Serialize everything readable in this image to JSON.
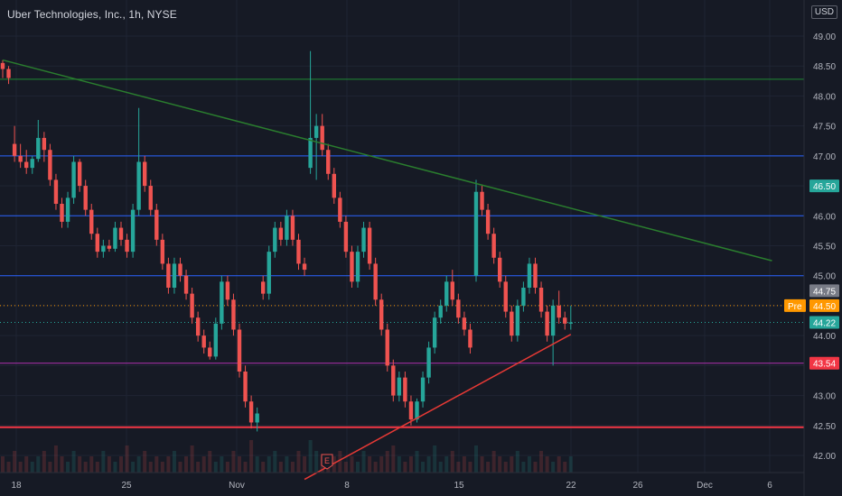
{
  "header": {
    "title": "Uber Technologies, Inc., 1h, NYSE",
    "currency": "USD"
  },
  "colors": {
    "background": "#161a25",
    "up": "#26a69a",
    "down": "#ef5350",
    "grid": "#1f2433",
    "axis_text": "#b2b5be",
    "hline_blue": "#2962ff",
    "hline_green": "#1f8a34",
    "hline_magenta": "#b030b0",
    "hline_red": "#f23645",
    "trend_green": "#2a7d2e",
    "trend_red": "#e53935",
    "pre": "#ff9800"
  },
  "chart_data": {
    "type": "candlestick",
    "title": "Uber Technologies, Inc., 1h, NYSE",
    "xlabel": "",
    "ylabel": "",
    "ylim": [
      41.75,
      48.65
    ],
    "grid": true,
    "x_ticks": [
      "18",
      "25",
      "Nov",
      "8",
      "15",
      "22",
      "26",
      "Dec",
      "6"
    ],
    "y_ticks": [
      "42.00",
      "42.50",
      "43.00",
      "43.50",
      "44.00",
      "44.50",
      "45.00",
      "45.50",
      "46.00",
      "46.50",
      "47.00",
      "47.50",
      "48.00",
      "48.50",
      "49.00"
    ],
    "series": [
      {
        "values": [
          [
            48.55,
            48.6,
            48.3,
            48.45
          ],
          [
            48.45,
            48.5,
            48.2,
            48.3
          ],
          [
            47.2,
            47.5,
            46.9,
            47.0
          ],
          [
            47.0,
            47.2,
            46.8,
            46.9
          ],
          [
            46.9,
            47.1,
            46.7,
            46.8
          ],
          [
            46.8,
            47.0,
            46.7,
            46.95
          ],
          [
            46.95,
            47.6,
            46.9,
            47.3
          ],
          [
            47.3,
            47.4,
            46.9,
            47.1
          ],
          [
            47.1,
            47.2,
            46.5,
            46.6
          ],
          [
            46.6,
            46.7,
            46.1,
            46.2
          ],
          [
            46.2,
            46.3,
            45.8,
            45.9
          ],
          [
            45.9,
            46.4,
            45.8,
            46.3
          ],
          [
            46.3,
            47.0,
            46.2,
            46.9
          ],
          [
            46.9,
            46.95,
            46.4,
            46.5
          ],
          [
            46.5,
            46.6,
            46.0,
            46.1
          ],
          [
            46.1,
            46.2,
            45.6,
            45.7
          ],
          [
            45.7,
            45.8,
            45.3,
            45.4
          ],
          [
            45.4,
            45.6,
            45.3,
            45.5
          ],
          [
            45.5,
            45.6,
            45.4,
            45.45
          ],
          [
            45.45,
            45.9,
            45.4,
            45.8
          ],
          [
            45.8,
            45.9,
            45.5,
            45.6
          ],
          [
            45.6,
            45.7,
            45.3,
            45.4
          ],
          [
            45.4,
            46.2,
            45.3,
            46.1
          ],
          [
            46.1,
            47.8,
            46.0,
            46.9
          ],
          [
            46.9,
            47.0,
            46.4,
            46.5
          ],
          [
            46.5,
            46.6,
            46.0,
            46.1
          ],
          [
            46.1,
            46.2,
            45.5,
            45.6
          ],
          [
            45.6,
            45.7,
            45.1,
            45.2
          ],
          [
            45.2,
            45.3,
            44.7,
            44.8
          ],
          [
            44.8,
            45.3,
            44.7,
            45.2
          ],
          [
            45.2,
            45.3,
            44.9,
            45.0
          ],
          [
            45.0,
            45.1,
            44.6,
            44.7
          ],
          [
            44.7,
            44.8,
            44.2,
            44.3
          ],
          [
            44.3,
            44.4,
            43.9,
            44.0
          ],
          [
            44.0,
            44.1,
            43.7,
            43.8
          ],
          [
            43.8,
            43.9,
            43.6,
            43.65
          ],
          [
            43.65,
            44.3,
            43.6,
            44.2
          ],
          [
            44.2,
            45.0,
            44.1,
            44.9
          ],
          [
            44.9,
            45.0,
            44.5,
            44.6
          ],
          [
            44.6,
            44.7,
            44.0,
            44.1
          ],
          [
            44.1,
            44.2,
            43.3,
            43.4
          ],
          [
            43.4,
            43.5,
            42.8,
            42.9
          ],
          [
            42.9,
            43.0,
            42.45,
            42.55
          ],
          [
            42.55,
            42.8,
            42.4,
            42.7
          ],
          [
            44.9,
            45.0,
            44.6,
            44.7
          ],
          [
            44.7,
            45.5,
            44.6,
            45.4
          ],
          [
            45.4,
            45.9,
            45.3,
            45.8
          ],
          [
            45.8,
            45.9,
            45.5,
            45.6
          ],
          [
            45.6,
            46.1,
            45.5,
            46.0
          ],
          [
            46.0,
            46.1,
            45.5,
            45.6
          ],
          [
            45.6,
            45.7,
            45.1,
            45.2
          ],
          [
            45.2,
            45.3,
            45.0,
            45.1
          ],
          [
            46.8,
            48.75,
            46.7,
            47.3
          ],
          [
            47.3,
            47.7,
            46.6,
            47.5
          ],
          [
            47.5,
            47.7,
            47.0,
            47.1
          ],
          [
            47.1,
            47.2,
            46.6,
            46.7
          ],
          [
            46.7,
            46.8,
            46.2,
            46.3
          ],
          [
            46.3,
            46.4,
            45.8,
            45.9
          ],
          [
            45.9,
            46.0,
            45.3,
            45.4
          ],
          [
            45.4,
            45.5,
            44.8,
            44.9
          ],
          [
            44.9,
            45.5,
            44.8,
            45.4
          ],
          [
            45.4,
            45.9,
            45.3,
            45.8
          ],
          [
            45.8,
            45.9,
            45.1,
            45.2
          ],
          [
            45.2,
            45.3,
            44.5,
            44.6
          ],
          [
            44.6,
            44.7,
            44.0,
            44.1
          ],
          [
            44.1,
            44.2,
            43.4,
            43.5
          ],
          [
            43.5,
            43.6,
            42.9,
            43.0
          ],
          [
            43.0,
            43.4,
            42.9,
            43.3
          ],
          [
            43.3,
            43.4,
            42.8,
            42.9
          ],
          [
            42.9,
            43.0,
            42.5,
            42.6
          ],
          [
            42.6,
            42.95,
            42.55,
            42.9
          ],
          [
            42.9,
            43.4,
            42.8,
            43.3
          ],
          [
            43.3,
            43.9,
            43.2,
            43.8
          ],
          [
            43.8,
            44.4,
            43.7,
            44.3
          ],
          [
            44.3,
            44.6,
            44.2,
            44.5
          ],
          [
            44.5,
            45.0,
            44.4,
            44.9
          ],
          [
            44.9,
            45.1,
            44.5,
            44.6
          ],
          [
            44.6,
            44.7,
            44.2,
            44.3
          ],
          [
            44.3,
            44.4,
            44.0,
            44.1
          ],
          [
            44.1,
            44.2,
            43.7,
            43.8
          ],
          [
            45.0,
            46.6,
            44.9,
            46.4
          ],
          [
            46.4,
            46.5,
            46.0,
            46.1
          ],
          [
            46.1,
            46.2,
            45.6,
            45.7
          ],
          [
            45.7,
            45.8,
            45.2,
            45.3
          ],
          [
            45.3,
            45.4,
            44.8,
            44.9
          ],
          [
            44.9,
            45.0,
            44.3,
            44.4
          ],
          [
            44.4,
            44.5,
            43.9,
            44.0
          ],
          [
            44.0,
            44.6,
            43.9,
            44.5
          ],
          [
            44.5,
            44.9,
            44.4,
            44.8
          ],
          [
            44.8,
            45.3,
            44.7,
            45.2
          ],
          [
            45.2,
            45.3,
            44.7,
            44.8
          ],
          [
            44.8,
            44.9,
            44.3,
            44.4
          ],
          [
            44.4,
            44.5,
            43.9,
            44.0
          ],
          [
            44.0,
            44.6,
            43.5,
            44.5
          ],
          [
            44.5,
            44.75,
            44.2,
            44.3
          ],
          [
            44.3,
            44.4,
            44.1,
            44.2
          ],
          [
            44.2,
            44.5,
            44.1,
            44.22
          ]
        ]
      }
    ],
    "horizontal_levels": [
      {
        "value": 48.28,
        "color": "hline_green"
      },
      {
        "value": 47.0,
        "color": "hline_blue"
      },
      {
        "value": 46.0,
        "color": "hline_blue"
      },
      {
        "value": 45.0,
        "color": "hline_blue"
      },
      {
        "value": 43.54,
        "color": "hline_magenta"
      },
      {
        "value": 42.47,
        "color": "hline_red"
      }
    ],
    "trendlines": [
      {
        "color": "trend_green",
        "from": {
          "x": 0,
          "y": 48.6
        },
        "to": {
          "x": 130,
          "y": 45.25
        }
      },
      {
        "color": "trend_red",
        "from": {
          "x": 51,
          "y": 41.6
        },
        "to": {
          "x": 96,
          "y": 44.02
        }
      }
    ],
    "price_labels": [
      {
        "text": "46.50",
        "value": 46.5,
        "bg": "#26a69a"
      },
      {
        "text": "44.75",
        "value": 44.75,
        "bg": "#787b86"
      },
      {
        "text": "44.50",
        "value": 44.5,
        "bg": "#ff9800",
        "tag": "Pre"
      },
      {
        "text": "44.22",
        "value": 44.22,
        "bg": "#26a69a"
      },
      {
        "text": "43.54",
        "value": 43.54,
        "bg": "#f23645"
      }
    ],
    "earnings_marker": "E",
    "volume": [
      3,
      2,
      4,
      2,
      3,
      2,
      3,
      4,
      2,
      5,
      3,
      2,
      4,
      3,
      2,
      3,
      2,
      4,
      3,
      2,
      3,
      5,
      2,
      3,
      4,
      2,
      3,
      2,
      3,
      4,
      2,
      3,
      5,
      2,
      3,
      4,
      2,
      3,
      2,
      4,
      3,
      2,
      6,
      3,
      2,
      3,
      4,
      2,
      3,
      2,
      4,
      3,
      6,
      4,
      3,
      2,
      3,
      4,
      2,
      3,
      2,
      4,
      3,
      2,
      3,
      4,
      5,
      3,
      2,
      3,
      4,
      2,
      3,
      5,
      2,
      3,
      4,
      2,
      3,
      2,
      5,
      3,
      2,
      4,
      3,
      2,
      3,
      4,
      2,
      3,
      2,
      4,
      3,
      2,
      3,
      2,
      3
    ]
  }
}
